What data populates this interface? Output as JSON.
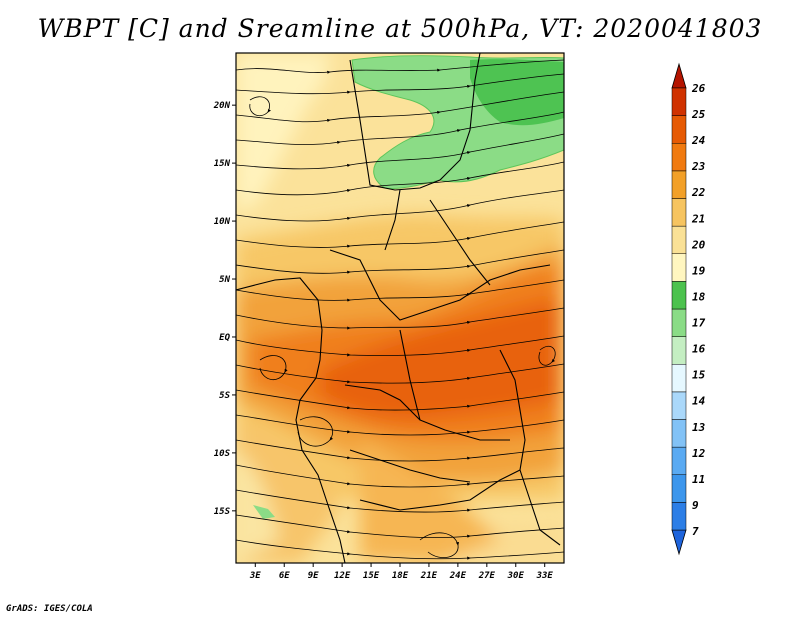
{
  "title": "WBPT [C] and Sreamline at 500hPa, VT: 2020041803",
  "footer": "GrADS: IGES/COLA",
  "map": {
    "lon_range": [
      1,
      35
    ],
    "lat_range": [
      -19.5,
      24.5
    ],
    "lon_ticks": [
      3,
      6,
      9,
      12,
      15,
      18,
      21,
      24,
      27,
      30,
      33
    ],
    "lon_tick_labels": [
      "3E",
      "6E",
      "9E",
      "12E",
      "15E",
      "18E",
      "21E",
      "24E",
      "27E",
      "30E",
      "33E"
    ],
    "lat_ticks": [
      20,
      15,
      10,
      5,
      0,
      -5,
      -10,
      -15
    ],
    "lat_tick_labels": [
      "20N",
      "15N",
      "10N",
      "5N",
      "EQ",
      "5S",
      "10S",
      "15S"
    ]
  },
  "colorbar": {
    "tick_labels": [
      "7",
      "9",
      "11",
      "12",
      "13",
      "14",
      "15",
      "16",
      "17",
      "18",
      "19",
      "20",
      "21",
      "22",
      "23",
      "24",
      "25",
      "26"
    ],
    "colors": [
      "#1e64dc",
      "#2c7ee6",
      "#3c96ec",
      "#5aaaf2",
      "#82c2f6",
      "#aad8fa",
      "#e6f8ff",
      "#c4eec2",
      "#8adc86",
      "#4cc24e",
      "#fff6c0",
      "#fae196",
      "#f6c460",
      "#f2a028",
      "#f07a10",
      "#e65a04",
      "#d03200",
      "#b41400"
    ]
  }
}
